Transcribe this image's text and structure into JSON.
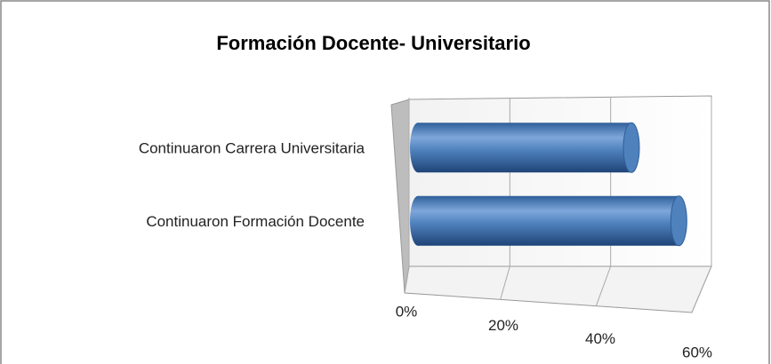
{
  "chart_data": {
    "type": "bar3d",
    "title": "Formación Docente- Universitario",
    "categories": [
      "Continuaron Formación Docente",
      "Continuaron Carrera Universitaria"
    ],
    "values": [
      55,
      45
    ],
    "color": "#4f81bd",
    "xlim": [
      0,
      60
    ],
    "xticks": [
      {
        "value": 0,
        "label": "0%"
      },
      {
        "value": 20,
        "label": "20%"
      },
      {
        "value": 40,
        "label": "40%"
      },
      {
        "value": 60,
        "label": "60%"
      }
    ],
    "grid": true
  }
}
